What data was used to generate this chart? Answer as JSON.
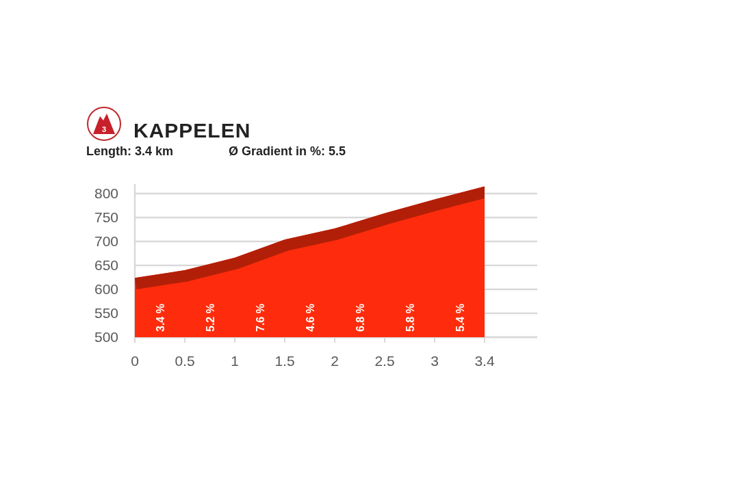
{
  "chart_data": {
    "type": "area",
    "title": "KAPPELEN",
    "subtitle": "Length: 3.4 km",
    "annotations": [
      "3",
      "Ø Gradient in %: 5.5",
      "3.4 %",
      "5.2 %",
      "7.6 %",
      "4.6 %",
      "6.8 %",
      "5.8 %",
      "5.4 %"
    ],
    "categories": [
      "0",
      "0.5",
      "1",
      "1.5",
      "2",
      "2.5",
      "3",
      "3.4"
    ],
    "series": [
      {
        "color": "#fe2c0c",
        "values": [
          624,
          640,
          666,
          704,
          727,
          759,
          788,
          815
        ]
      }
    ],
    "ylim": [
      500,
      820
    ],
    "yticks": [
      500,
      550,
      600,
      650,
      700,
      750,
      800
    ],
    "grid": "y"
  }
}
